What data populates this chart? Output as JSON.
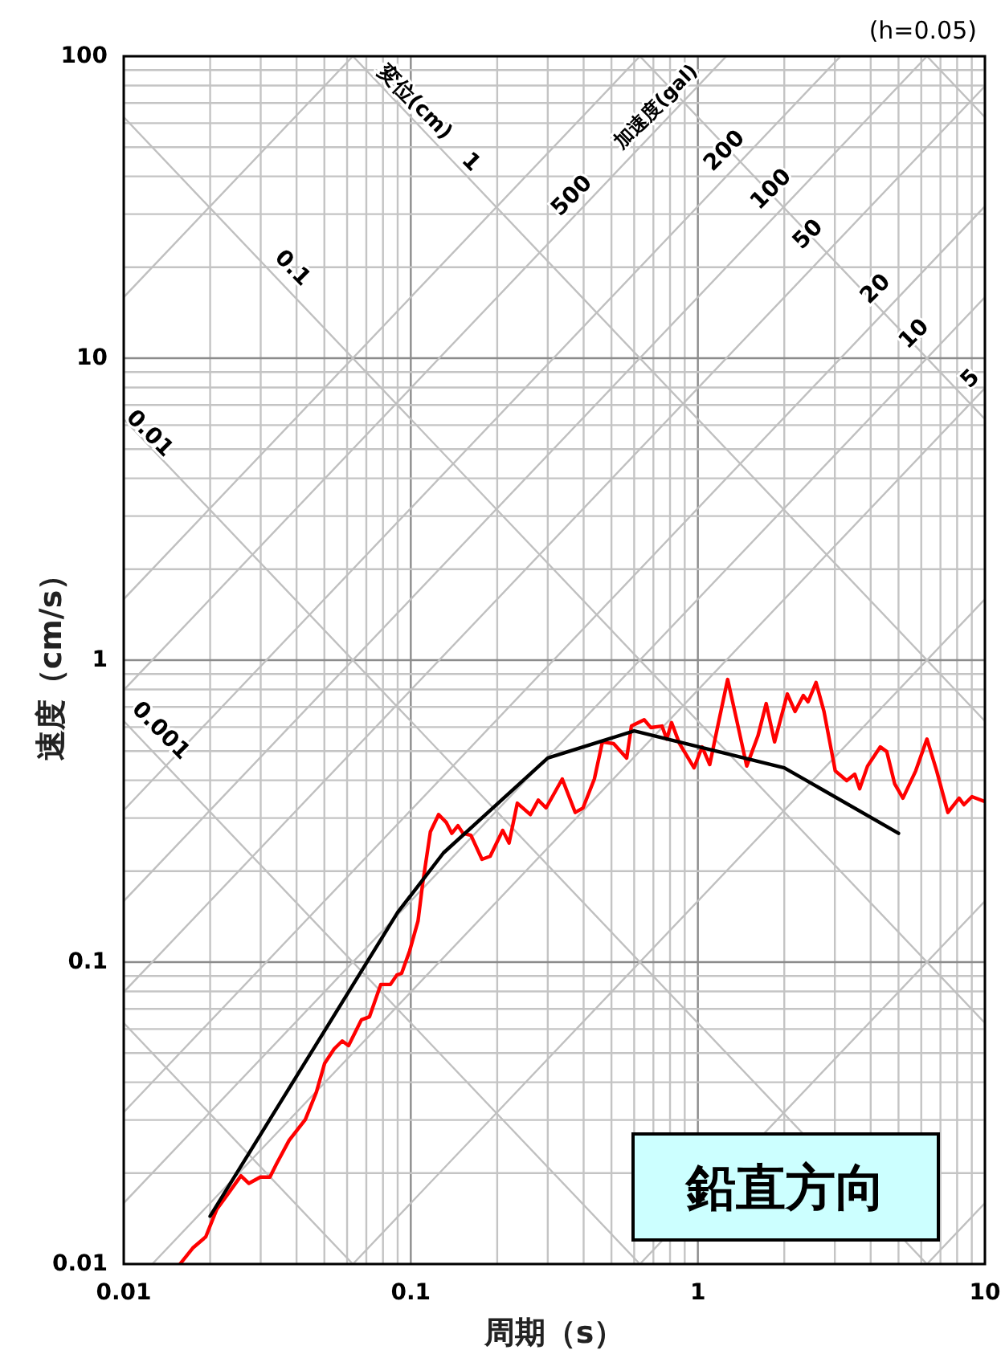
{
  "chart_data": {
    "type": "line",
    "xlabel": "周期（s）",
    "ylabel": "速度（cm/s）",
    "xlim": [
      0.01,
      10
    ],
    "ylim": [
      0.01,
      100
    ],
    "xticks": [
      0.01,
      0.1,
      1,
      10
    ],
    "yticks": [
      0.01,
      0.1,
      1,
      10,
      100
    ],
    "log": "xy",
    "grid": true,
    "series": [
      {
        "color": "#c0c0c0",
        "x": [
          0.01,
          0.06283
        ],
        "values": [
          0.06283,
          0.01
        ]
      },
      {
        "color": "#c0c0c0",
        "x": [
          0.01,
          0.6283
        ],
        "values": [
          0.6283,
          0.01
        ]
      },
      {
        "color": "#c0c0c0",
        "x": [
          0.01,
          6.283
        ],
        "values": [
          6.283,
          0.01
        ]
      },
      {
        "color": "#c0c0c0",
        "x": [
          0.01,
          10
        ],
        "values": [
          62.83,
          0.06283
        ]
      },
      {
        "color": "#c0c0c0",
        "x": [
          0.06283,
          10
        ],
        "values": [
          100,
          0.6283
        ]
      },
      {
        "color": "#c0c0c0",
        "x": [
          0.6283,
          10
        ],
        "values": [
          100,
          6.283
        ]
      },
      {
        "color": "#c0c0c0",
        "x": [
          6.283,
          10
        ],
        "values": [
          100,
          62.83
        ]
      },
      {
        "color": "#c0c0c0",
        "x": [
          6.283,
          10
        ],
        "values": [
          0.01,
          0.01592
        ]
      },
      {
        "color": "#c0c0c0",
        "x": [
          0.6283,
          10
        ],
        "values": [
          0.01,
          0.1592
        ]
      },
      {
        "color": "#c0c0c0",
        "x": [
          0.06283,
          10
        ],
        "values": [
          0.01,
          1.592
        ]
      },
      {
        "color": "#c0c0c0",
        "x": [
          0.01257,
          10
        ],
        "values": [
          0.01,
          7.958
        ]
      },
      {
        "color": "#c0c0c0",
        "x": [
          0.01,
          10
        ],
        "values": [
          0.01592,
          15.92
        ]
      },
      {
        "color": "#c0c0c0",
        "x": [
          0.01,
          10
        ],
        "values": [
          0.03183,
          31.83
        ]
      },
      {
        "color": "#c0c0c0",
        "x": [
          0.01,
          10
        ],
        "values": [
          0.07958,
          79.58
        ]
      },
      {
        "color": "#c0c0c0",
        "x": [
          0.01,
          6.283
        ],
        "values": [
          0.1592,
          100
        ]
      },
      {
        "color": "#c0c0c0",
        "x": [
          0.01,
          3.142
        ],
        "values": [
          0.3183,
          100
        ]
      },
      {
        "color": "#c0c0c0",
        "x": [
          0.01,
          1.257
        ],
        "values": [
          0.7958,
          100
        ]
      },
      {
        "color": "#c0c0c0",
        "x": [
          0.01,
          0.6283
        ],
        "values": [
          1.592,
          100
        ]
      },
      {
        "color": "#c0c0c0",
        "x": [
          0.01,
          0.06283
        ],
        "values": [
          15.92,
          100
        ]
      },
      {
        "color": "#ff0000",
        "x": [
          0.0157,
          0.0174,
          0.0193,
          0.0211,
          0.0231,
          0.0256,
          0.0273,
          0.0299,
          0.0323,
          0.034,
          0.0377,
          0.0429,
          0.0469,
          0.0501,
          0.0541,
          0.0577,
          0.0607,
          0.0673,
          0.0718,
          0.0786,
          0.0849,
          0.0894,
          0.0929,
          0.0991,
          0.106,
          0.11,
          0.117,
          0.125,
          0.133,
          0.139,
          0.146,
          0.152,
          0.162,
          0.177,
          0.189,
          0.209,
          0.22,
          0.235,
          0.261,
          0.278,
          0.296,
          0.337,
          0.374,
          0.398,
          0.436,
          0.465,
          0.509,
          0.565,
          0.587,
          0.65,
          0.685,
          0.75,
          0.779,
          0.81,
          0.863,
          0.97,
          1.035,
          1.1,
          1.18,
          1.27,
          1.36,
          1.48,
          1.62,
          1.73,
          1.85,
          2.05,
          2.18,
          2.33,
          2.42,
          2.58,
          2.75,
          3.01,
          3.3,
          3.52,
          3.66,
          3.9,
          4.32,
          4.55,
          4.85,
          5.18,
          5.74,
          6.28,
          6.79,
          7.43,
          8.13,
          8.45,
          9.01,
          10
        ],
        "values": [
          0.01,
          0.0113,
          0.0123,
          0.0152,
          0.0171,
          0.0196,
          0.0185,
          0.0194,
          0.0194,
          0.0214,
          0.0257,
          0.0301,
          0.0371,
          0.0462,
          0.0516,
          0.0548,
          0.0529,
          0.0644,
          0.0659,
          0.0843,
          0.0843,
          0.0906,
          0.0918,
          0.109,
          0.137,
          0.182,
          0.27,
          0.308,
          0.29,
          0.267,
          0.283,
          0.267,
          0.263,
          0.219,
          0.224,
          0.273,
          0.248,
          0.336,
          0.308,
          0.344,
          0.324,
          0.404,
          0.313,
          0.324,
          0.404,
          0.536,
          0.529,
          0.474,
          0.605,
          0.635,
          0.598,
          0.605,
          0.548,
          0.621,
          0.529,
          0.44,
          0.516,
          0.451,
          0.621,
          0.863,
          0.644,
          0.446,
          0.562,
          0.718,
          0.536,
          0.773,
          0.676,
          0.764,
          0.728,
          0.843,
          0.676,
          0.43,
          0.399,
          0.419,
          0.375,
          0.446,
          0.516,
          0.498,
          0.389,
          0.349,
          0.43,
          0.548,
          0.43,
          0.313,
          0.349,
          0.332,
          0.353,
          0.34
        ]
      },
      {
        "color": "#000000",
        "x": [
          0.02,
          0.09,
          0.13,
          0.3,
          0.6,
          2,
          5
        ],
        "values": [
          0.0144,
          0.146,
          0.23,
          0.474,
          0.583,
          0.44,
          0.267
        ]
      }
    ],
    "annotations": [
      "(h=0.05)",
      "鉛直方向",
      "変位(cm)",
      "1",
      "0.1",
      "0.01",
      "0.001",
      "加速度(gal)",
      "500",
      "200",
      "100",
      "50",
      "20",
      "10",
      "5"
    ]
  }
}
